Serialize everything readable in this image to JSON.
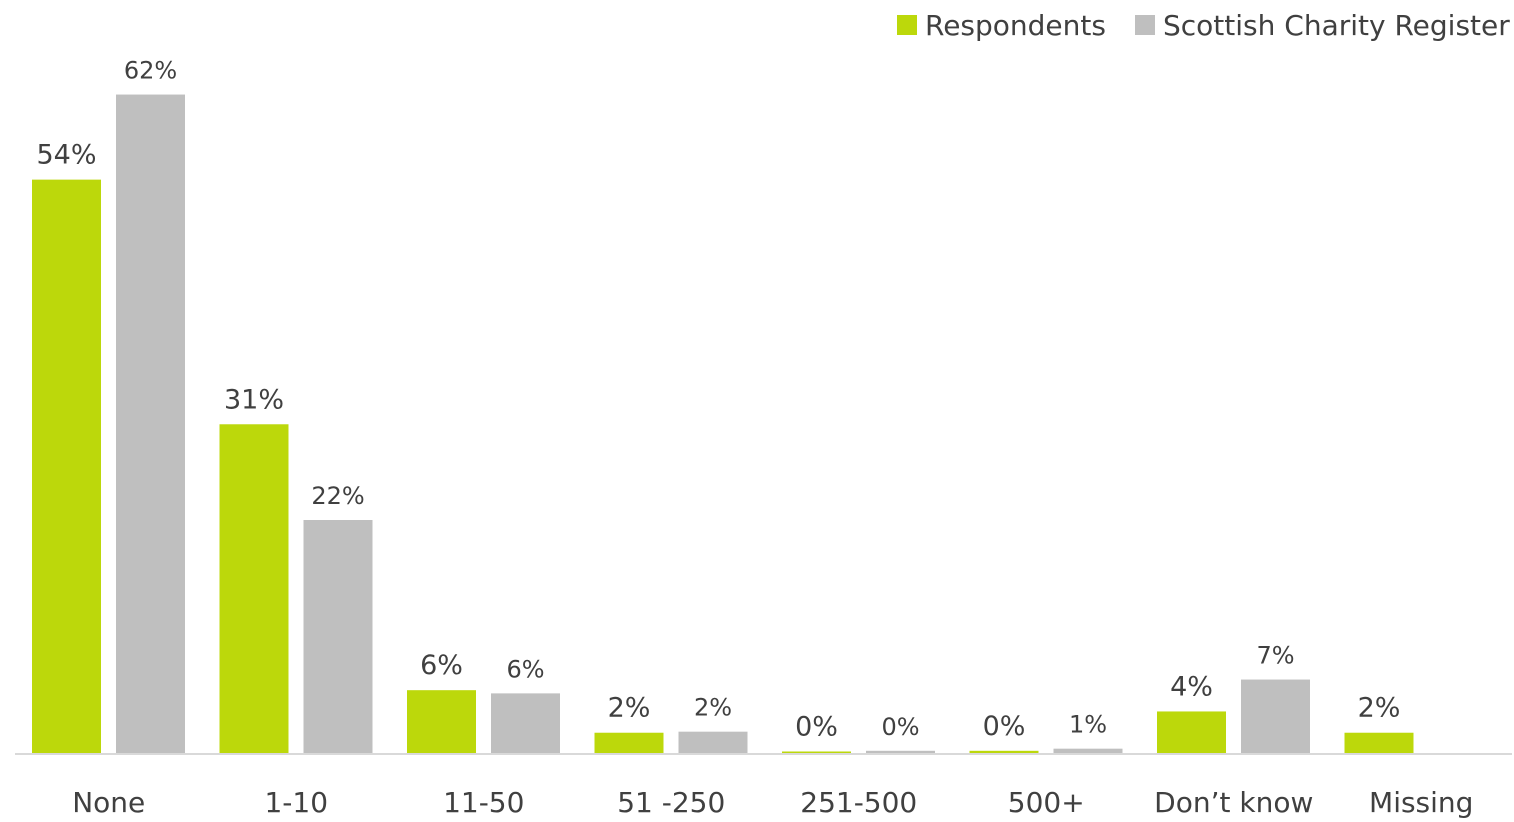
{
  "chart_data": {
    "type": "bar",
    "categories": [
      "None",
      "1-10",
      "11-50",
      "51 -250",
      "251-500",
      "500+",
      "Don’t know",
      "Missing"
    ],
    "series": [
      {
        "name": "Respondents",
        "color": "#bcd80b",
        "values": [
          54,
          31,
          6,
          2,
          0.2,
          0.3,
          4,
          2
        ],
        "labels": [
          "54%",
          "31%",
          "6%",
          "2%",
          "0%",
          "0%",
          "4%",
          "2%"
        ]
      },
      {
        "name": "Scottish Charity Register",
        "color": "#bfbfbf",
        "values": [
          62,
          22,
          5.7,
          2.1,
          0.3,
          0.5,
          7,
          null
        ],
        "labels": [
          "62%",
          "22%",
          "6%",
          "2%",
          "0%",
          "1%",
          "7%",
          ""
        ]
      }
    ],
    "ylim": [
      0,
      66
    ],
    "grid": false,
    "legend_position": "top-right",
    "axis_color": "#d9d9d9",
    "xlabel": "",
    "ylabel": ""
  }
}
